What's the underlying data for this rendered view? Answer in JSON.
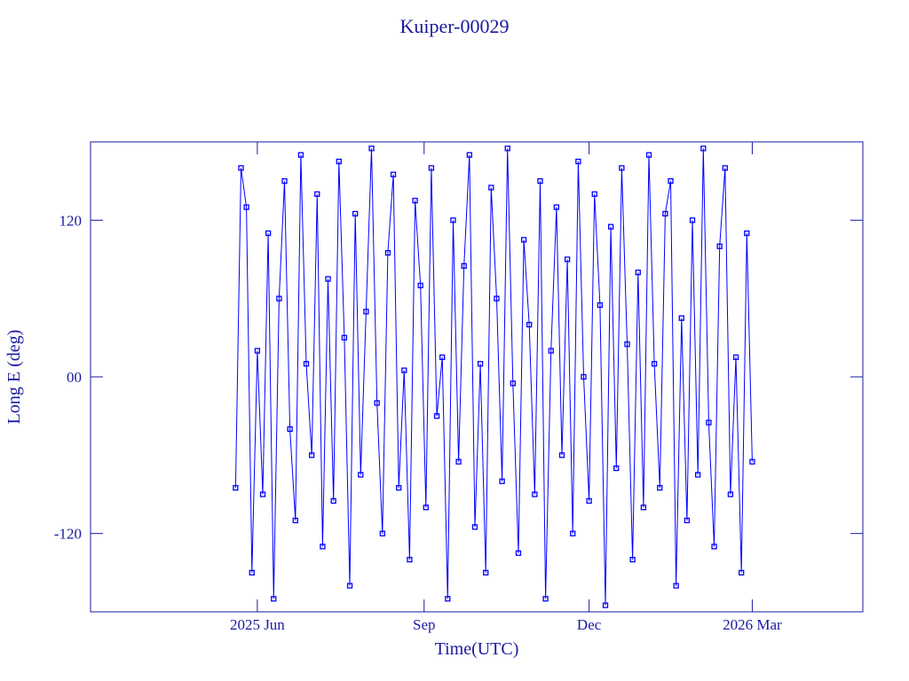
{
  "chart_data": {
    "type": "line",
    "title": "Kuiper-00029",
    "x_label": "Time(UTC)",
    "y_label": "Long E (deg)",
    "xlim": [
      "2025-03",
      "2026-05"
    ],
    "xticks": [
      {
        "value": "2025-06",
        "label": "2025 Jun"
      },
      {
        "value": "2025-09",
        "label": "Sep"
      },
      {
        "value": "2025-12",
        "label": "Dec"
      },
      {
        "value": "2026-03",
        "label": "2026 Mar"
      }
    ],
    "ylim": [
      -180,
      180
    ],
    "yticks": [
      -120,
      {
        "value": 0,
        "label": "00"
      },
      120
    ],
    "x": [
      "2025-05-20",
      "2025-05-23",
      "2025-05-26",
      "2025-05-29",
      "2025-06-01",
      "2025-06-04",
      "2025-06-07",
      "2025-06-10",
      "2025-06-13",
      "2025-06-16",
      "2025-06-19",
      "2025-06-22",
      "2025-06-25",
      "2025-06-28",
      "2025-07-01",
      "2025-07-04",
      "2025-07-07",
      "2025-07-10",
      "2025-07-13",
      "2025-07-16",
      "2025-07-19",
      "2025-07-22",
      "2025-07-25",
      "2025-07-28",
      "2025-07-31",
      "2025-08-03",
      "2025-08-06",
      "2025-08-09",
      "2025-08-12",
      "2025-08-15",
      "2025-08-18",
      "2025-08-21",
      "2025-08-24",
      "2025-08-27",
      "2025-08-30",
      "2025-09-02",
      "2025-09-05",
      "2025-09-08",
      "2025-09-11",
      "2025-09-14",
      "2025-09-17",
      "2025-09-20",
      "2025-09-23",
      "2025-09-26",
      "2025-09-29",
      "2025-10-02",
      "2025-10-05",
      "2025-10-08",
      "2025-10-11",
      "2025-10-14",
      "2025-10-17",
      "2025-10-20",
      "2025-10-23",
      "2025-10-26",
      "2025-10-29",
      "2025-11-01",
      "2025-11-04",
      "2025-11-07",
      "2025-11-10",
      "2025-11-13",
      "2025-11-16",
      "2025-11-19",
      "2025-11-22",
      "2025-11-25",
      "2025-11-28",
      "2025-12-01",
      "2025-12-04",
      "2025-12-07",
      "2025-12-10",
      "2025-12-13",
      "2025-12-16",
      "2025-12-19",
      "2025-12-22",
      "2025-12-25",
      "2025-12-28",
      "2025-12-31",
      "2026-01-03",
      "2026-01-06",
      "2026-01-09",
      "2026-01-12",
      "2026-01-15",
      "2026-01-18",
      "2026-01-21",
      "2026-01-24",
      "2026-01-27",
      "2026-01-30",
      "2026-02-02",
      "2026-02-05",
      "2026-02-08",
      "2026-02-11",
      "2026-02-14",
      "2026-02-17",
      "2026-02-20",
      "2026-02-23",
      "2026-02-26",
      "2026-03-01"
    ],
    "series": [
      {
        "color": "#0000ff",
        "values": [
          -85,
          160,
          130,
          -150,
          20,
          -90,
          110,
          -170,
          60,
          150,
          -40,
          -110,
          170,
          10,
          -60,
          140,
          -130,
          75,
          -95,
          165,
          30,
          -160,
          125,
          -75,
          50,
          175,
          -20,
          -120,
          95,
          155,
          -85,
          5,
          -140,
          135,
          70,
          -100,
          160,
          -30,
          15,
          -170,
          120,
          -65,
          85,
          170,
          -115,
          10,
          -150,
          145,
          60,
          -80,
          175,
          -5,
          -135,
          105,
          40,
          -90,
          150,
          -170,
          20,
          130,
          -60,
          90,
          -120,
          165,
          0,
          -95,
          140,
          55,
          -175,
          115,
          -70,
          160,
          25,
          -140,
          80,
          -100,
          170,
          10,
          -85,
          125,
          150,
          -160,
          45,
          -110,
          120,
          -75,
          175,
          -35,
          -130,
          100,
          160,
          -90,
          15,
          -150,
          110,
          -65
        ]
      }
    ]
  }
}
